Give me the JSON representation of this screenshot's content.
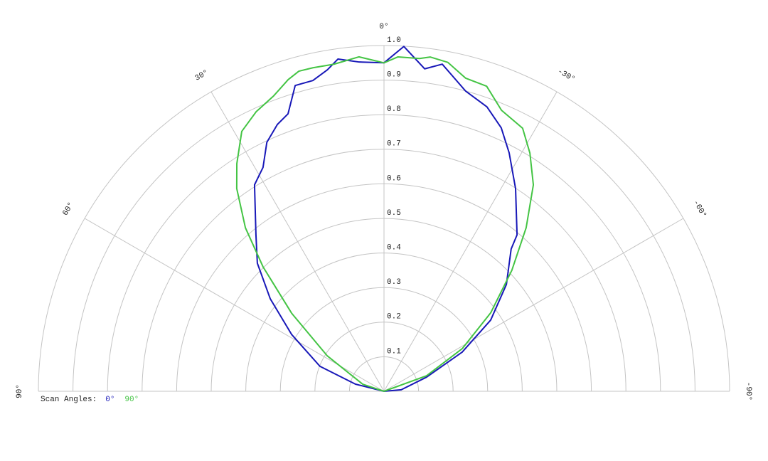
{
  "chart_data": {
    "type": "polar",
    "rlim": [
      0,
      1
    ],
    "rticks": [
      0.1,
      0.2,
      0.3,
      0.4,
      0.5,
      0.6,
      0.7,
      0.8,
      0.9,
      {
        "value": 1,
        "label": "1.0"
      }
    ],
    "thetalim": [
      -90,
      90
    ],
    "thetaticks": [
      {
        "value": 90,
        "label": "90°"
      },
      {
        "value": 60,
        "label": "60°"
      },
      {
        "value": 30,
        "label": "30°"
      },
      {
        "value": 0,
        "label": "0°"
      },
      {
        "value": -30,
        "label": "-30°"
      },
      {
        "value": -60,
        "label": "-60°"
      },
      {
        "value": -90,
        "label": "-90°"
      }
    ],
    "grid": true,
    "legend_title": "Scan Angles:",
    "legend_position": "bottom-left",
    "series": [
      {
        "name": "0°",
        "color": "#1818b8",
        "theta": [
          90,
          76,
          68.7,
          58.4,
          50.9,
          44.7,
          39.3,
          32.1,
          28.4,
          25.2,
          21.8,
          19.1,
          16.2,
          12.9,
          10,
          7.9,
          4.3,
          0,
          -3.3,
          -7.2,
          -10.1,
          -15.2,
          -19.9,
          -24,
          -27.7,
          -33,
          -40.4,
          -41.8,
          -48.9,
          -56.3,
          -63.4,
          -71.6,
          -85,
          -90
        ],
        "values": [
          0,
          0.085,
          0.199,
          0.314,
          0.424,
          0.521,
          0.585,
          0.705,
          0.736,
          0.796,
          0.831,
          0.849,
          0.921,
          0.922,
          0.944,
          0.97,
          0.955,
          0.95,
          0.999,
          0.94,
          0.961,
          0.9,
          0.875,
          0.834,
          0.779,
          0.699,
          0.594,
          0.552,
          0.47,
          0.371,
          0.253,
          0.13,
          0.05,
          0
        ]
      },
      {
        "name": "90°",
        "color": "#44c444",
        "theta": [
          90,
          71.6,
          58,
          49.8,
          44.2,
          40.3,
          36,
          32.9,
          28.7,
          24.6,
          20.5,
          17.1,
          14.9,
          12.4,
          8.7,
          4.3,
          0,
          -2.4,
          -6.1,
          -7.9,
          -11,
          -14.6,
          -18.6,
          -22.7,
          -27.8,
          -31.5,
          -35.9,
          -41,
          -46.6,
          -53.7,
          -61.4,
          -70,
          -90
        ],
        "values": [
          0,
          0.065,
          0.194,
          0.35,
          0.502,
          0.62,
          0.725,
          0.784,
          0.857,
          0.889,
          0.912,
          0.943,
          0.958,
          0.958,
          0.957,
          0.97,
          0.95,
          0.968,
          0.968,
          0.976,
          0.969,
          0.936,
          0.931,
          0.881,
          0.86,
          0.808,
          0.737,
          0.627,
          0.509,
          0.383,
          0.258,
          0.131,
          0
        ]
      }
    ]
  }
}
